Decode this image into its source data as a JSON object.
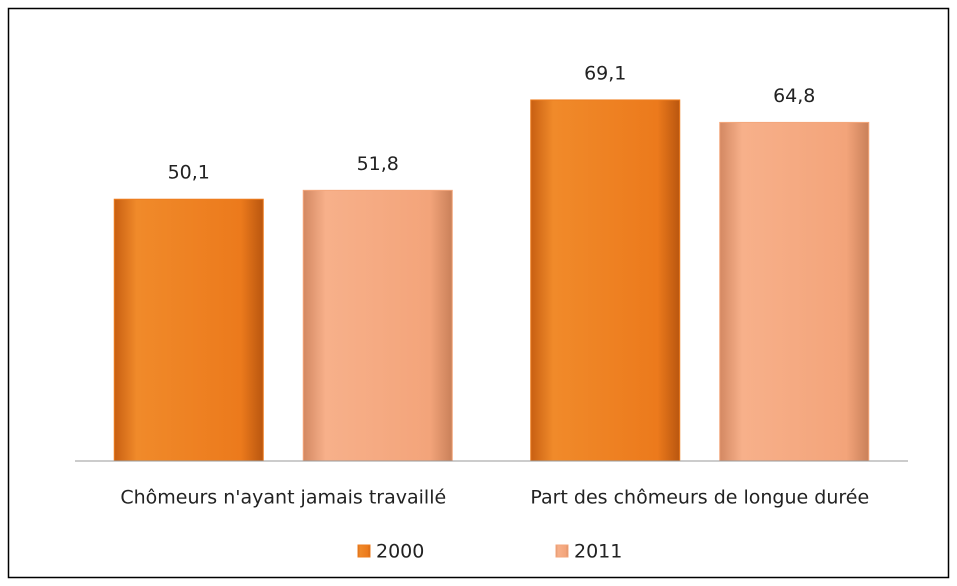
{
  "chart_data": {
    "type": "bar",
    "categories": [
      "Chômeurs n'ayant jamais travaillé",
      "Part des chômeurs de longue durée"
    ],
    "series": [
      {
        "name": "2000",
        "color": "#ee7d1f",
        "values": [
          50.1,
          69.1
        ],
        "value_labels": [
          "50,1",
          "69,1"
        ]
      },
      {
        "name": "2011",
        "color": "#f3a67b",
        "values": [
          51.8,
          64.8
        ],
        "value_labels": [
          "51,8",
          "64,8"
        ]
      }
    ],
    "ylim": [
      0,
      80
    ],
    "grid": false,
    "legend": "bottom"
  }
}
